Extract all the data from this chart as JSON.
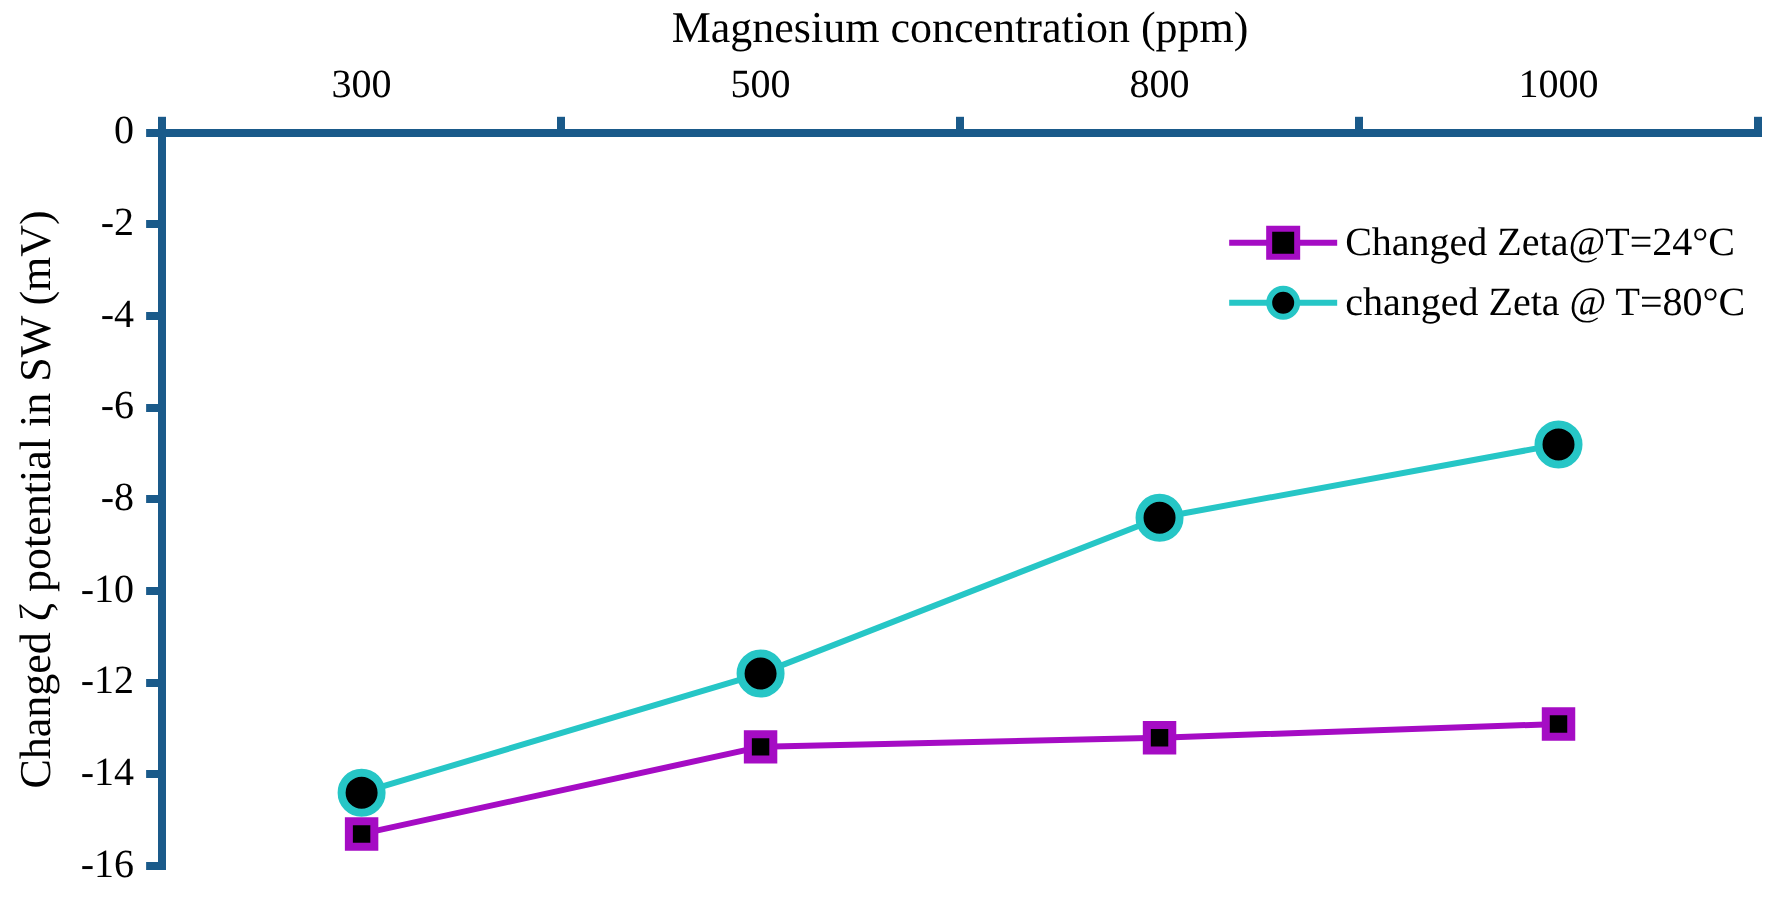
{
  "chart_data": {
    "type": "line",
    "xlabel": "Magnesium concentration (ppm)",
    "ylabel": "Changed ζ potential in SW (mV)",
    "categories": [
      "300",
      "500",
      "800",
      "1000"
    ],
    "series": [
      {
        "name": "Changed Zeta@T=24°C",
        "color": "#a50cc4",
        "marker": "square",
        "values": [
          -15.3,
          -13.4,
          -13.2,
          -12.9
        ]
      },
      {
        "name": "changed Zeta @ T=80°C",
        "color": "#26c6c6",
        "marker": "circle",
        "values": [
          -14.4,
          -11.8,
          -8.4,
          -6.8
        ]
      }
    ],
    "ylim": [
      -16,
      0
    ],
    "yticks": [
      -16,
      -14,
      -12,
      -10,
      -8,
      -6,
      -4,
      -2,
      0
    ],
    "grid": false,
    "legend": "top right"
  }
}
